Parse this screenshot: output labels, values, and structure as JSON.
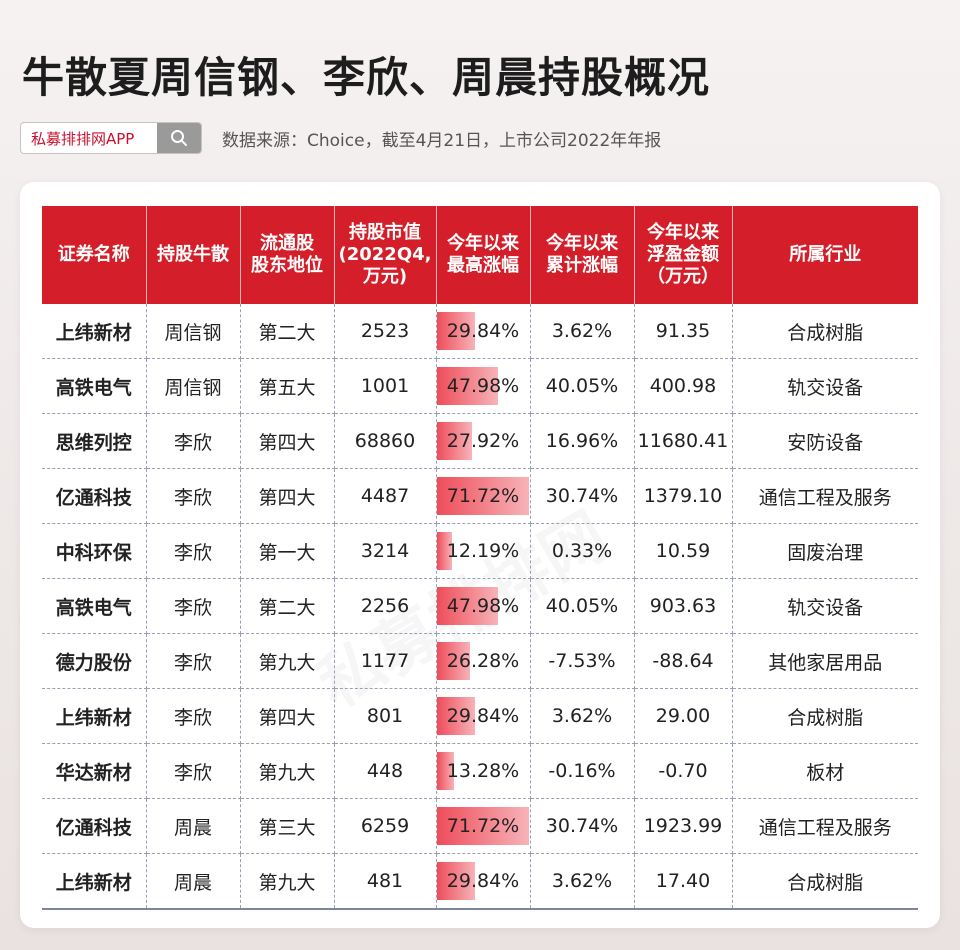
{
  "title": "牛散夏周信钢、李欣、周晨持股概况",
  "search": {
    "label": "私募排排网APP"
  },
  "source_note": "数据来源：Choice，截至4月21日，上市公司2022年年报",
  "watermark": "私募排排网",
  "colors": {
    "header_red": "#d41f2a",
    "bar_red": "#ee4d5a",
    "brand_red": "#c8102e"
  },
  "table": {
    "headers": [
      "证券名称",
      "持股牛散",
      "流通股\n股东地位",
      "持股市值\n(2022Q4,\n万元)",
      "今年以来\n最高涨幅",
      "今年以来\n累计涨幅",
      "今年以来\n浮盈金额\n（万元）",
      "所属行业"
    ],
    "rows": [
      {
        "name": "上纬新材",
        "holder": "周信钢",
        "rank": "第二大",
        "value": "2523",
        "max_gain": "29.84%",
        "max_gain_num": 29.84,
        "cum_gain": "3.62%",
        "profit": "91.35",
        "industry": "合成树脂"
      },
      {
        "name": "高铁电气",
        "holder": "周信钢",
        "rank": "第五大",
        "value": "1001",
        "max_gain": "47.98%",
        "max_gain_num": 47.98,
        "cum_gain": "40.05%",
        "profit": "400.98",
        "industry": "轨交设备"
      },
      {
        "name": "思维列控",
        "holder": "李欣",
        "rank": "第四大",
        "value": "68860",
        "max_gain": "27.92%",
        "max_gain_num": 27.92,
        "cum_gain": "16.96%",
        "profit": "11680.41",
        "industry": "安防设备"
      },
      {
        "name": "亿通科技",
        "holder": "李欣",
        "rank": "第四大",
        "value": "4487",
        "max_gain": "71.72%",
        "max_gain_num": 71.72,
        "cum_gain": "30.74%",
        "profit": "1379.10",
        "industry": "通信工程及服务"
      },
      {
        "name": "中科环保",
        "holder": "李欣",
        "rank": "第一大",
        "value": "3214",
        "max_gain": "12.19%",
        "max_gain_num": 12.19,
        "cum_gain": "0.33%",
        "profit": "10.59",
        "industry": "固废治理"
      },
      {
        "name": "高铁电气",
        "holder": "李欣",
        "rank": "第二大",
        "value": "2256",
        "max_gain": "47.98%",
        "max_gain_num": 47.98,
        "cum_gain": "40.05%",
        "profit": "903.63",
        "industry": "轨交设备"
      },
      {
        "name": "德力股份",
        "holder": "李欣",
        "rank": "第九大",
        "value": "1177",
        "max_gain": "26.28%",
        "max_gain_num": 26.28,
        "cum_gain": "-7.53%",
        "profit": "-88.64",
        "industry": "其他家居用品"
      },
      {
        "name": "上纬新材",
        "holder": "李欣",
        "rank": "第四大",
        "value": "801",
        "max_gain": "29.84%",
        "max_gain_num": 29.84,
        "cum_gain": "3.62%",
        "profit": "29.00",
        "industry": "合成树脂"
      },
      {
        "name": "华达新材",
        "holder": "李欣",
        "rank": "第九大",
        "value": "448",
        "max_gain": "13.28%",
        "max_gain_num": 13.28,
        "cum_gain": "-0.16%",
        "profit": "-0.70",
        "industry": "板材"
      },
      {
        "name": "亿通科技",
        "holder": "周晨",
        "rank": "第三大",
        "value": "6259",
        "max_gain": "71.72%",
        "max_gain_num": 71.72,
        "cum_gain": "30.74%",
        "profit": "1923.99",
        "industry": "通信工程及服务"
      },
      {
        "name": "上纬新材",
        "holder": "周晨",
        "rank": "第九大",
        "value": "481",
        "max_gain": "29.84%",
        "max_gain_num": 29.84,
        "cum_gain": "3.62%",
        "profit": "17.40",
        "industry": "合成树脂"
      }
    ]
  }
}
